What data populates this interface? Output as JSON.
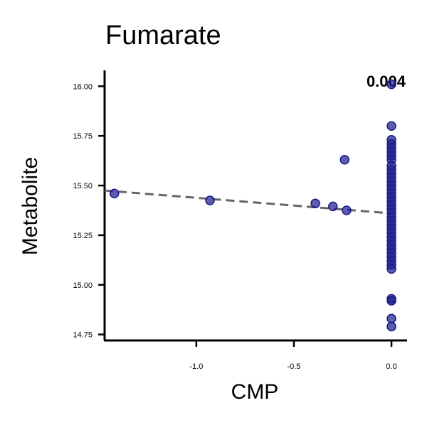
{
  "chart_data": {
    "type": "scatter",
    "title": "Fumarate",
    "xlabel": "CMP",
    "ylabel": "Metabolite",
    "annotation": "0.004",
    "xlim": [
      -1.47,
      0.08
    ],
    "ylim": [
      14.72,
      16.08
    ],
    "xticks": [
      -1.0,
      -0.5,
      0.0
    ],
    "xtick_labels": [
      "-1.0",
      "-0.5",
      "0.0"
    ],
    "yticks": [
      14.75,
      15.0,
      15.25,
      15.5,
      15.75,
      16.0
    ],
    "ytick_labels": [
      "14.75",
      "15.00",
      "15.25",
      "15.50",
      "15.75",
      "16.00"
    ],
    "grid": false,
    "point_color": "#1a1a8c",
    "trend_color": "#666666",
    "trendline": {
      "x": [
        -1.47,
        0.0
      ],
      "y": [
        15.475,
        15.36
      ]
    },
    "points": [
      {
        "x": -1.42,
        "y": 15.46
      },
      {
        "x": -0.93,
        "y": 15.425
      },
      {
        "x": -0.39,
        "y": 15.41
      },
      {
        "x": -0.3,
        "y": 15.395
      },
      {
        "x": -0.24,
        "y": 15.63
      },
      {
        "x": -0.23,
        "y": 15.375
      },
      {
        "x": 0.0,
        "y": 16.01
      },
      {
        "x": 0.0,
        "y": 15.8
      },
      {
        "x": 0.0,
        "y": 15.73
      },
      {
        "x": 0.0,
        "y": 15.71
      },
      {
        "x": 0.0,
        "y": 15.69
      },
      {
        "x": 0.0,
        "y": 15.67
      },
      {
        "x": 0.0,
        "y": 15.65
      },
      {
        "x": 0.0,
        "y": 15.63
      },
      {
        "x": 0.0,
        "y": 15.6
      },
      {
        "x": 0.0,
        "y": 15.58
      },
      {
        "x": 0.0,
        "y": 15.56
      },
      {
        "x": 0.0,
        "y": 15.54
      },
      {
        "x": 0.0,
        "y": 15.52
      },
      {
        "x": 0.0,
        "y": 15.5
      },
      {
        "x": 0.0,
        "y": 15.48
      },
      {
        "x": 0.0,
        "y": 15.46
      },
      {
        "x": 0.0,
        "y": 15.44
      },
      {
        "x": 0.0,
        "y": 15.42
      },
      {
        "x": 0.0,
        "y": 15.4
      },
      {
        "x": 0.0,
        "y": 15.38
      },
      {
        "x": 0.0,
        "y": 15.36
      },
      {
        "x": 0.0,
        "y": 15.34
      },
      {
        "x": 0.0,
        "y": 15.32
      },
      {
        "x": 0.0,
        "y": 15.3
      },
      {
        "x": 0.0,
        "y": 15.28
      },
      {
        "x": 0.0,
        "y": 15.26
      },
      {
        "x": 0.0,
        "y": 15.24
      },
      {
        "x": 0.0,
        "y": 15.22
      },
      {
        "x": 0.0,
        "y": 15.2
      },
      {
        "x": 0.0,
        "y": 15.18
      },
      {
        "x": 0.0,
        "y": 15.16
      },
      {
        "x": 0.0,
        "y": 15.14
      },
      {
        "x": 0.0,
        "y": 15.12
      },
      {
        "x": 0.0,
        "y": 15.1
      },
      {
        "x": 0.0,
        "y": 15.08
      },
      {
        "x": 0.0,
        "y": 14.93
      },
      {
        "x": 0.0,
        "y": 14.92
      },
      {
        "x": 0.0,
        "y": 14.83
      },
      {
        "x": 0.0,
        "y": 14.79
      }
    ]
  }
}
